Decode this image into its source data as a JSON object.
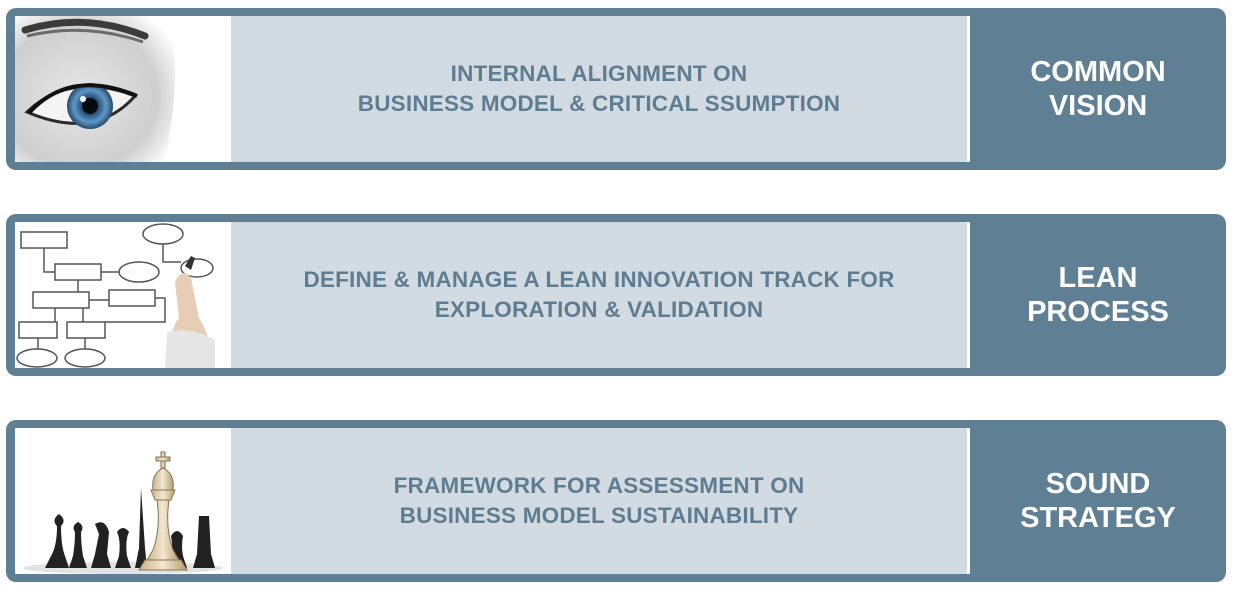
{
  "rows": [
    {
      "image": "eye-photo",
      "description_lines": [
        "INTERNAL ALIGNMENT ON",
        "BUSINESS MODEL & CRITICAL SSUMPTION"
      ],
      "label_lines": [
        "COMMON",
        "VISION"
      ]
    },
    {
      "image": "hand-drawing-flowchart-photo",
      "description_lines": [
        "DEFINE & MANAGE A LEAN INNOVATION TRACK FOR",
        "EXPLORATION & VALIDATION"
      ],
      "label_lines": [
        "LEAN",
        "PROCESS"
      ]
    },
    {
      "image": "chess-pieces-photo",
      "description_lines": [
        "FRAMEWORK FOR ASSESSMENT ON",
        "BUSINESS MODEL SUSTAINABILITY"
      ],
      "label_lines": [
        "SOUND",
        "STRATEGY"
      ]
    }
  ],
  "colors": {
    "banner": "#5f7f94",
    "description_panel": "#d3dbe2",
    "description_text": "#5e7d92",
    "label_text": "#ffffff"
  }
}
